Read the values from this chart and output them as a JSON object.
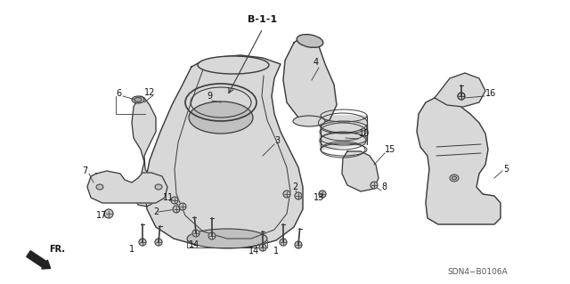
{
  "bg_color": "#ffffff",
  "line_color": "#3a3a3a",
  "fill_light": "#d8d8d8",
  "fill_mid": "#c0c0c0",
  "fill_dark": "#a8a8a8",
  "label_color": "#111111",
  "part_label": "B-1-1",
  "diagram_code": "SDN4−B0106A",
  "fr_label": "FR.",
  "figsize": [
    6.4,
    3.19
  ],
  "dpi": 100
}
